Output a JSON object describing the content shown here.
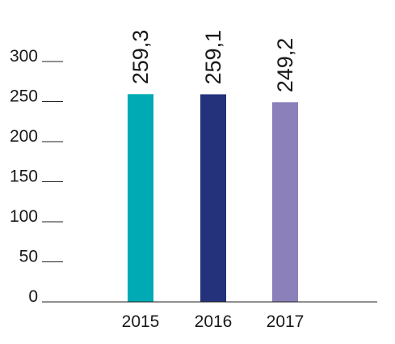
{
  "chart_data": {
    "type": "bar",
    "title": "",
    "xlabel": "",
    "ylabel": "",
    "categories": [
      "2015",
      "2016",
      "2017"
    ],
    "values": [
      259.3,
      259.1,
      249.2
    ],
    "value_labels": [
      "259,3",
      "259,1",
      "249,2"
    ],
    "colors": [
      "#00aab5",
      "#24327c",
      "#8b80b9"
    ],
    "ylim": [
      0,
      300
    ],
    "yticks": [
      0,
      50,
      100,
      150,
      200,
      250,
      300
    ],
    "ytick_labels": [
      "0",
      "50",
      "100",
      "150",
      "200",
      "250",
      "300"
    ],
    "grid": false,
    "legend": "none"
  }
}
